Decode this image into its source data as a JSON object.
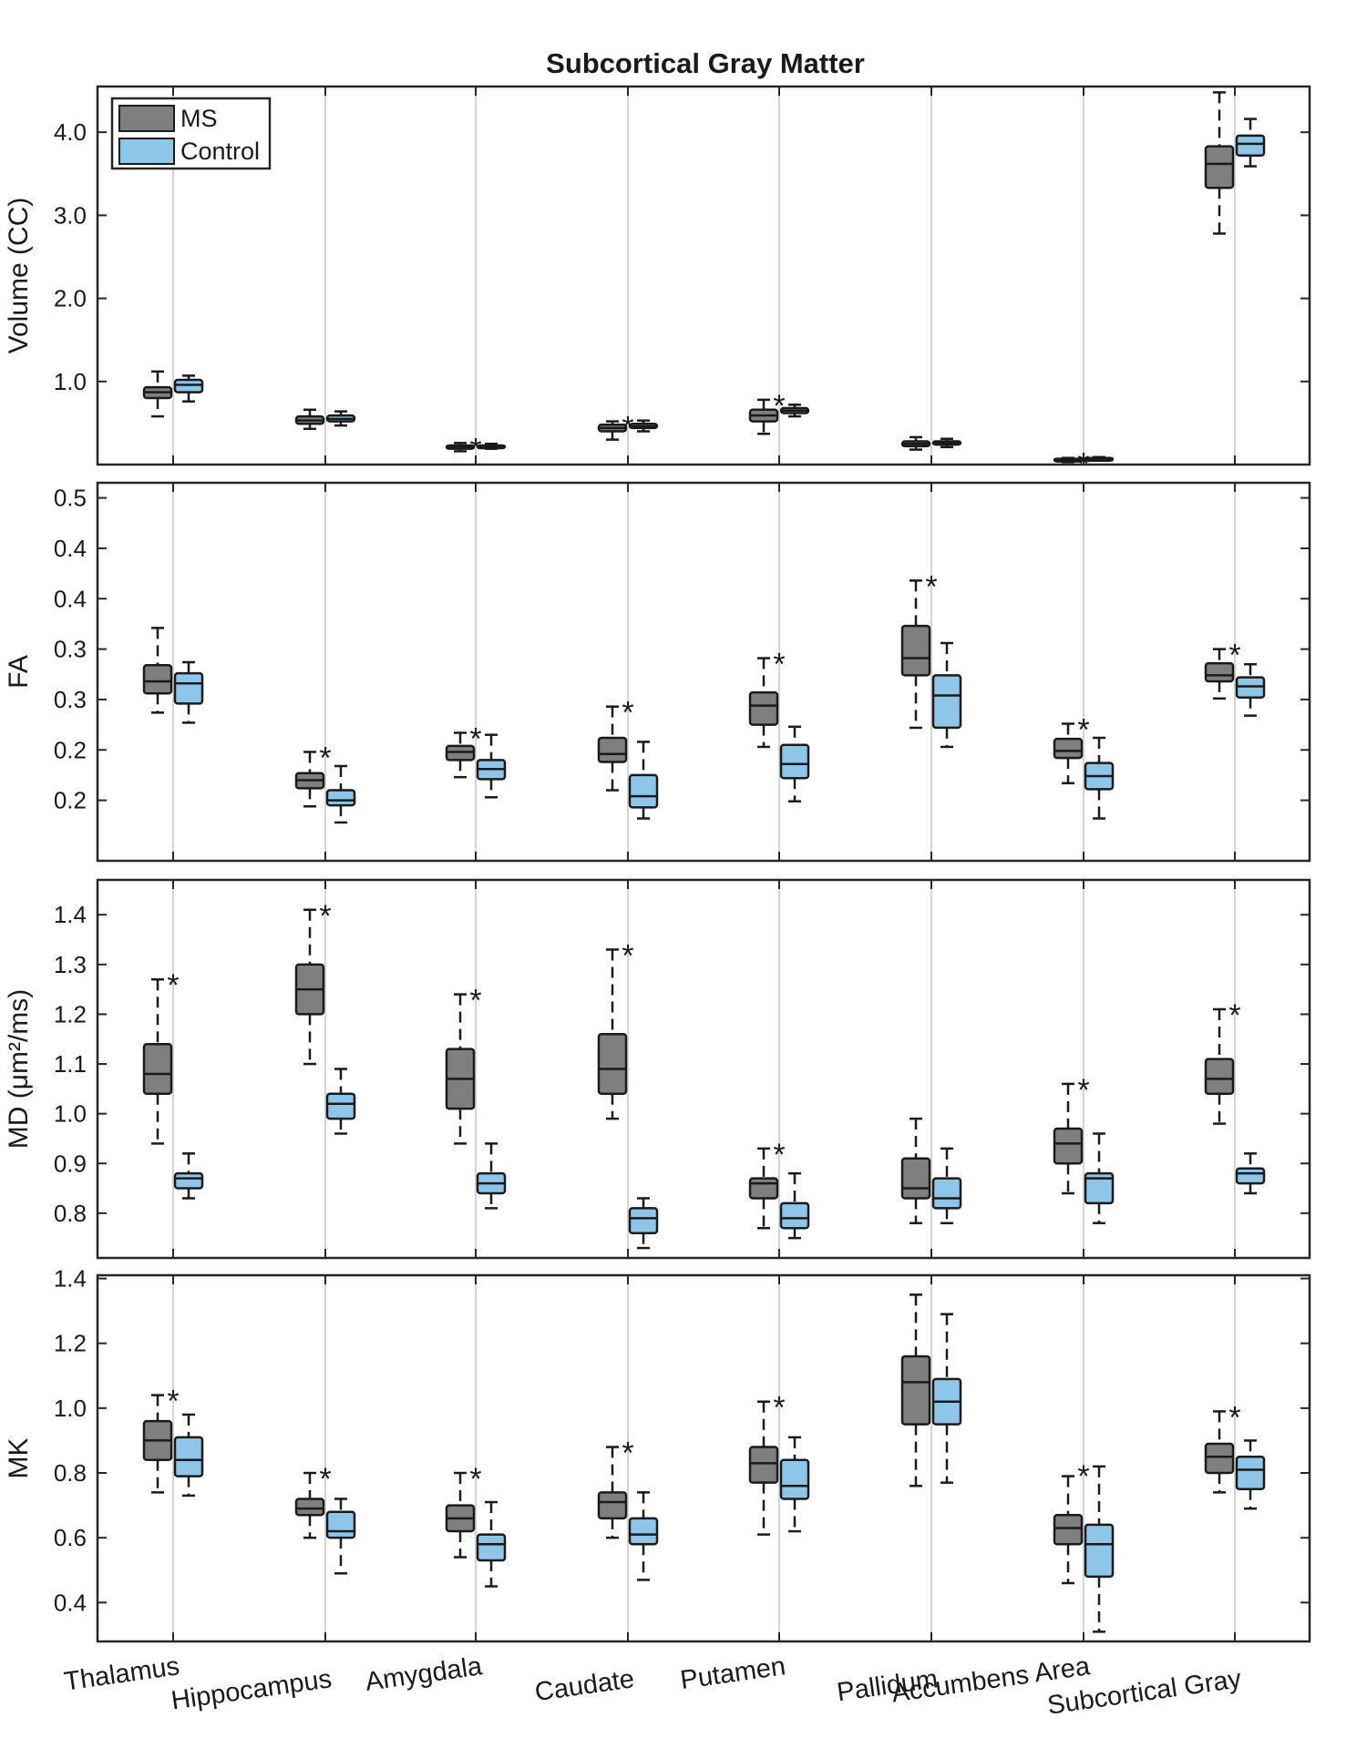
{
  "title": "Subcortical Gray Matter",
  "legend": {
    "position": "top-left",
    "entries": [
      {
        "name": "MS",
        "color": "#7f7f7f"
      },
      {
        "name": "Control",
        "color": "#8ec6ea"
      }
    ]
  },
  "chart_data": [
    {
      "type": "box",
      "panel": "Volume",
      "ylabel": "Volume (CC)",
      "ylim": [
        0,
        4.55
      ],
      "yticks": [
        1.0,
        2.0,
        3.0,
        4.0
      ],
      "ytick_labels": [
        "1.0",
        "2.0",
        "3.0",
        "4.0"
      ],
      "categories": [
        "Thalamus",
        "Hippocampus",
        "Amygdala",
        "Caudate",
        "Putamen",
        "Pallidum",
        "Accumbens Area",
        "Subcortical Gray"
      ],
      "significance": [
        false,
        false,
        true,
        true,
        true,
        false,
        true,
        false
      ],
      "series": [
        {
          "name": "MS",
          "boxes": [
            {
              "min": 0.58,
              "q1": 0.8,
              "median": 0.87,
              "q3": 0.93,
              "max": 1.12
            },
            {
              "min": 0.43,
              "q1": 0.49,
              "median": 0.53,
              "q3": 0.58,
              "max": 0.66
            },
            {
              "min": 0.16,
              "q1": 0.19,
              "median": 0.21,
              "q3": 0.23,
              "max": 0.26
            },
            {
              "min": 0.3,
              "q1": 0.4,
              "median": 0.44,
              "q3": 0.48,
              "max": 0.52
            },
            {
              "min": 0.37,
              "q1": 0.52,
              "median": 0.59,
              "q3": 0.66,
              "max": 0.78
            },
            {
              "min": 0.18,
              "q1": 0.22,
              "median": 0.25,
              "q3": 0.28,
              "max": 0.33
            },
            {
              "min": 0.03,
              "q1": 0.05,
              "median": 0.06,
              "q3": 0.07,
              "max": 0.08
            },
            {
              "min": 2.78,
              "q1": 3.33,
              "median": 3.62,
              "q3": 3.83,
              "max": 4.48
            }
          ]
        },
        {
          "name": "Control",
          "boxes": [
            {
              "min": 0.76,
              "q1": 0.87,
              "median": 0.96,
              "q3": 1.02,
              "max": 1.07
            },
            {
              "min": 0.47,
              "q1": 0.52,
              "median": 0.55,
              "q3": 0.59,
              "max": 0.64
            },
            {
              "min": 0.19,
              "q1": 0.21,
              "median": 0.22,
              "q3": 0.23,
              "max": 0.25
            },
            {
              "min": 0.4,
              "q1": 0.44,
              "median": 0.46,
              "q3": 0.49,
              "max": 0.53
            },
            {
              "min": 0.58,
              "q1": 0.62,
              "median": 0.65,
              "q3": 0.68,
              "max": 0.72
            },
            {
              "min": 0.21,
              "q1": 0.24,
              "median": 0.26,
              "q3": 0.28,
              "max": 0.31
            },
            {
              "min": 0.05,
              "q1": 0.06,
              "median": 0.07,
              "q3": 0.08,
              "max": 0.09
            },
            {
              "min": 3.59,
              "q1": 3.72,
              "median": 3.86,
              "q3": 3.96,
              "max": 4.16
            }
          ]
        }
      ]
    },
    {
      "type": "box",
      "panel": "FA",
      "ylabel": "FA",
      "ylim": [
        0.14,
        0.515
      ],
      "yticks": [
        0.2,
        0.25,
        0.3,
        0.35,
        0.4,
        0.45,
        0.5
      ],
      "ytick_labels": [
        "0.2",
        "0.2",
        "0.3",
        "0.3",
        "0.4",
        "0.4",
        "0.5"
      ],
      "categories": [
        "Thalamus",
        "Hippocampus",
        "Amygdala",
        "Caudate",
        "Putamen",
        "Pallidum",
        "Accumbens Area",
        "Subcortical Gray"
      ],
      "significance": [
        false,
        true,
        true,
        true,
        true,
        true,
        true,
        true
      ],
      "series": [
        {
          "name": "MS",
          "boxes": [
            {
              "min": 0.287,
              "q1": 0.306,
              "median": 0.318,
              "q3": 0.334,
              "max": 0.371
            },
            {
              "min": 0.194,
              "q1": 0.212,
              "median": 0.22,
              "q3": 0.227,
              "max": 0.248
            },
            {
              "min": 0.223,
              "q1": 0.24,
              "median": 0.248,
              "q3": 0.254,
              "max": 0.267
            },
            {
              "min": 0.21,
              "q1": 0.238,
              "median": 0.246,
              "q3": 0.262,
              "max": 0.293
            },
            {
              "min": 0.253,
              "q1": 0.275,
              "median": 0.294,
              "q3": 0.307,
              "max": 0.341
            },
            {
              "min": 0.272,
              "q1": 0.324,
              "median": 0.341,
              "q3": 0.373,
              "max": 0.418
            },
            {
              "min": 0.217,
              "q1": 0.242,
              "median": 0.249,
              "q3": 0.261,
              "max": 0.276
            },
            {
              "min": 0.301,
              "q1": 0.318,
              "median": 0.324,
              "q3": 0.336,
              "max": 0.35
            }
          ]
        },
        {
          "name": "Control",
          "boxes": [
            {
              "min": 0.277,
              "q1": 0.296,
              "median": 0.316,
              "q3": 0.326,
              "max": 0.337
            },
            {
              "min": 0.178,
              "q1": 0.195,
              "median": 0.2,
              "q3": 0.21,
              "max": 0.234
            },
            {
              "min": 0.203,
              "q1": 0.221,
              "median": 0.231,
              "q3": 0.24,
              "max": 0.265
            },
            {
              "min": 0.182,
              "q1": 0.193,
              "median": 0.204,
              "q3": 0.225,
              "max": 0.258
            },
            {
              "min": 0.199,
              "q1": 0.222,
              "median": 0.236,
              "q3": 0.255,
              "max": 0.273
            },
            {
              "min": 0.253,
              "q1": 0.272,
              "median": 0.304,
              "q3": 0.324,
              "max": 0.356
            },
            {
              "min": 0.182,
              "q1": 0.211,
              "median": 0.224,
              "q3": 0.237,
              "max": 0.262
            },
            {
              "min": 0.284,
              "q1": 0.302,
              "median": 0.313,
              "q3": 0.322,
              "max": 0.335
            }
          ]
        }
      ]
    },
    {
      "type": "box",
      "panel": "MD",
      "ylabel": "MD (μm²/ms)",
      "ylim": [
        0.71,
        1.47
      ],
      "yticks": [
        0.8,
        0.9,
        1.0,
        1.1,
        1.2,
        1.3,
        1.4
      ],
      "ytick_labels": [
        "0.8",
        "0.9",
        "1.0",
        "1.1",
        "1.2",
        "1.3",
        "1.4"
      ],
      "categories": [
        "Thalamus",
        "Hippocampus",
        "Amygdala",
        "Caudate",
        "Putamen",
        "Pallidum",
        "Accumbens Area",
        "Subcortical Gray"
      ],
      "significance": [
        true,
        true,
        true,
        true,
        true,
        false,
        true,
        true
      ],
      "series": [
        {
          "name": "MS",
          "boxes": [
            {
              "min": 0.94,
              "q1": 1.04,
              "median": 1.08,
              "q3": 1.14,
              "max": 1.27
            },
            {
              "min": 1.1,
              "q1": 1.2,
              "median": 1.25,
              "q3": 1.3,
              "max": 1.41
            },
            {
              "min": 0.94,
              "q1": 1.01,
              "median": 1.07,
              "q3": 1.13,
              "max": 1.24
            },
            {
              "min": 0.99,
              "q1": 1.04,
              "median": 1.09,
              "q3": 1.16,
              "max": 1.33
            },
            {
              "min": 0.77,
              "q1": 0.83,
              "median": 0.86,
              "q3": 0.87,
              "max": 0.93
            },
            {
              "min": 0.78,
              "q1": 0.83,
              "median": 0.85,
              "q3": 0.91,
              "max": 0.99
            },
            {
              "min": 0.84,
              "q1": 0.9,
              "median": 0.94,
              "q3": 0.97,
              "max": 1.06
            },
            {
              "min": 0.98,
              "q1": 1.04,
              "median": 1.07,
              "q3": 1.11,
              "max": 1.21
            }
          ]
        },
        {
          "name": "Control",
          "boxes": [
            {
              "min": 0.83,
              "q1": 0.85,
              "median": 0.87,
              "q3": 0.88,
              "max": 0.92
            },
            {
              "min": 0.96,
              "q1": 0.99,
              "median": 1.02,
              "q3": 1.04,
              "max": 1.09
            },
            {
              "min": 0.81,
              "q1": 0.84,
              "median": 0.86,
              "q3": 0.88,
              "max": 0.94
            },
            {
              "min": 0.73,
              "q1": 0.76,
              "median": 0.79,
              "q3": 0.81,
              "max": 0.83
            },
            {
              "min": 0.75,
              "q1": 0.77,
              "median": 0.79,
              "q3": 0.82,
              "max": 0.88
            },
            {
              "min": 0.78,
              "q1": 0.81,
              "median": 0.83,
              "q3": 0.87,
              "max": 0.93
            },
            {
              "min": 0.78,
              "q1": 0.82,
              "median": 0.87,
              "q3": 0.88,
              "max": 0.96
            },
            {
              "min": 0.84,
              "q1": 0.86,
              "median": 0.88,
              "q3": 0.89,
              "max": 0.92
            }
          ]
        }
      ]
    },
    {
      "type": "box",
      "panel": "MK",
      "ylabel": "MK",
      "ylim": [
        0.28,
        1.41
      ],
      "yticks": [
        0.4,
        0.6,
        0.8,
        1.0,
        1.2,
        1.4
      ],
      "ytick_labels": [
        "0.4",
        "0.6",
        "0.8",
        "1.0",
        "1.2",
        "1.4"
      ],
      "categories": [
        "Thalamus",
        "Hippocampus",
        "Amygdala",
        "Caudate",
        "Putamen",
        "Pallidum",
        "Accumbens Area",
        "Subcortical Gray"
      ],
      "significance": [
        true,
        true,
        true,
        true,
        true,
        false,
        true,
        true
      ],
      "series": [
        {
          "name": "MS",
          "boxes": [
            {
              "min": 0.74,
              "q1": 0.84,
              "median": 0.9,
              "q3": 0.96,
              "max": 1.04
            },
            {
              "min": 0.6,
              "q1": 0.67,
              "median": 0.69,
              "q3": 0.72,
              "max": 0.8
            },
            {
              "min": 0.54,
              "q1": 0.62,
              "median": 0.66,
              "q3": 0.7,
              "max": 0.8
            },
            {
              "min": 0.6,
              "q1": 0.66,
              "median": 0.71,
              "q3": 0.74,
              "max": 0.88
            },
            {
              "min": 0.61,
              "q1": 0.77,
              "median": 0.83,
              "q3": 0.88,
              "max": 1.02
            },
            {
              "min": 0.76,
              "q1": 0.95,
              "median": 1.08,
              "q3": 1.16,
              "max": 1.35
            },
            {
              "min": 0.46,
              "q1": 0.58,
              "median": 0.63,
              "q3": 0.67,
              "max": 0.79
            },
            {
              "min": 0.74,
              "q1": 0.8,
              "median": 0.85,
              "q3": 0.89,
              "max": 0.99
            }
          ]
        },
        {
          "name": "Control",
          "boxes": [
            {
              "min": 0.73,
              "q1": 0.79,
              "median": 0.84,
              "q3": 0.91,
              "max": 0.98
            },
            {
              "min": 0.49,
              "q1": 0.6,
              "median": 0.62,
              "q3": 0.68,
              "max": 0.72
            },
            {
              "min": 0.45,
              "q1": 0.53,
              "median": 0.58,
              "q3": 0.61,
              "max": 0.71
            },
            {
              "min": 0.47,
              "q1": 0.58,
              "median": 0.61,
              "q3": 0.66,
              "max": 0.74
            },
            {
              "min": 0.62,
              "q1": 0.72,
              "median": 0.76,
              "q3": 0.84,
              "max": 0.91
            },
            {
              "min": 0.77,
              "q1": 0.95,
              "median": 1.02,
              "q3": 1.09,
              "max": 1.29
            },
            {
              "min": 0.31,
              "q1": 0.48,
              "median": 0.58,
              "q3": 0.64,
              "max": 0.82
            },
            {
              "min": 0.69,
              "q1": 0.75,
              "median": 0.81,
              "q3": 0.85,
              "max": 0.9
            }
          ]
        }
      ]
    }
  ]
}
